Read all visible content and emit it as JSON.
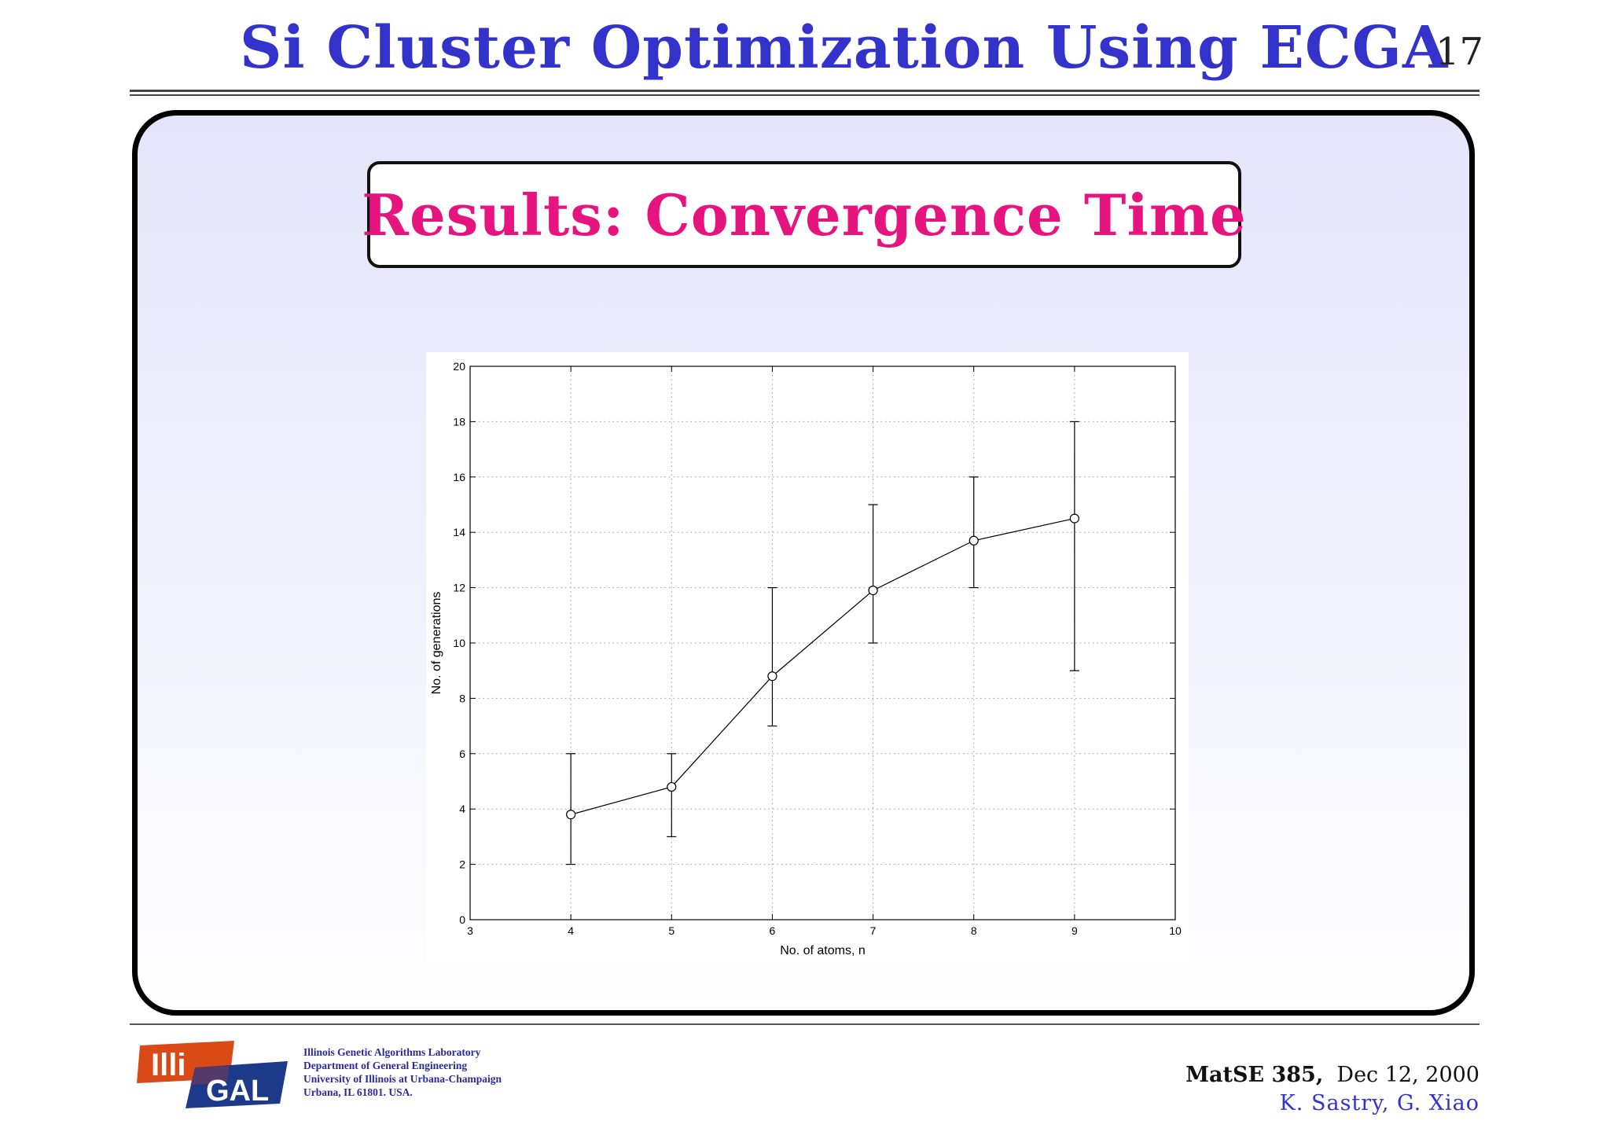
{
  "header": {
    "title": "Si Cluster Optimization Using ECGA",
    "page_number": "17"
  },
  "subtitle": "Results: Convergence Time",
  "chart_data": {
    "type": "line",
    "xlabel": "No. of atoms, n",
    "ylabel": "No. of generations",
    "xlim": [
      3,
      10
    ],
    "ylim": [
      0,
      20
    ],
    "xticks": [
      3,
      4,
      5,
      6,
      7,
      8,
      9,
      10
    ],
    "yticks": [
      0,
      2,
      4,
      6,
      8,
      10,
      12,
      14,
      16,
      18,
      20
    ],
    "grid": true,
    "marker": "circle",
    "series": [
      {
        "x": [
          4,
          5,
          6,
          7,
          8,
          9
        ],
        "y": [
          3.8,
          4.8,
          8.8,
          11.9,
          13.7,
          14.5
        ],
        "err_low": [
          2,
          3,
          7,
          10,
          12,
          9
        ],
        "err_high": [
          6,
          6,
          12,
          15,
          16,
          18
        ]
      }
    ]
  },
  "footer": {
    "logo_text": [
      "Illi",
      "GAL"
    ],
    "lab_lines": [
      "Illinois Genetic Algorithms Laboratory",
      "Department of General Engineering",
      "University of Illinois at Urbana-Champaign",
      "Urbana, IL 61801. USA."
    ],
    "course": "MatSE 385,",
    "date": "Dec 12, 2000",
    "authors": "K. Sastry, G. Xiao"
  },
  "colors": {
    "title": "#3333cc",
    "subtitle": "#e6147f",
    "logo_red": "#d94a16",
    "logo_blue": "#1d3a8a"
  }
}
